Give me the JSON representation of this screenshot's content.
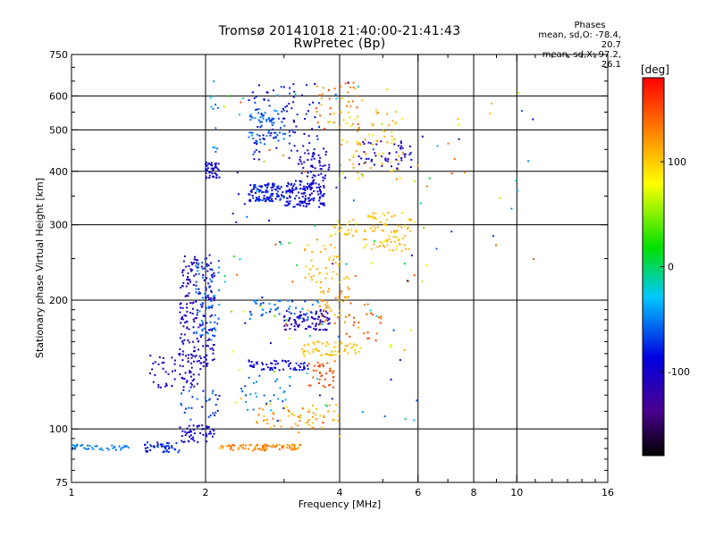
{
  "chart_data": {
    "type": "scatter",
    "title": "Tromsø 20141018 21:40:00-21:41:43",
    "subtitle": "RwPretec (Bp)",
    "xlabel": "Frequency [MHz]",
    "ylabel": "Stationary phase Virtual Height [km]",
    "xscale": "log",
    "yscale": "log",
    "xlim": [
      1,
      16
    ],
    "ylim": [
      75,
      750
    ],
    "x_ticks": [
      1,
      2,
      4,
      6,
      8,
      10,
      16
    ],
    "x_tick_labels": [
      "1",
      "2",
      "4",
      "6",
      "8",
      "10",
      "16"
    ],
    "x_gridlines": [
      2,
      4,
      6,
      8,
      10
    ],
    "y_ticks": [
      75,
      100,
      200,
      300,
      400,
      500,
      600,
      750
    ],
    "y_tick_labels": [
      "75",
      "100",
      "200",
      "300",
      "400",
      "500",
      "600",
      "750"
    ],
    "y_gridlines": [
      100,
      200,
      300,
      400,
      500,
      600
    ],
    "grid": true,
    "legend": {
      "heading": "Phases",
      "lines": [
        "mean, sd,O: -78.4, 20.7",
        "mean, sd,X:  97.2, 26.1"
      ],
      "placement": "top-right"
    },
    "colorbar": {
      "label": "[deg]",
      "range": [
        -180,
        180
      ],
      "ticks": [
        100,
        0,
        -100
      ],
      "tick_labels": [
        "100",
        "0",
        "-100"
      ],
      "colormap": "rainbow (black-purple-blue-cyan-green-yellow-red)"
    },
    "clusters": [
      {
        "f_lo": 1.0,
        "f_hi": 1.35,
        "h_lo": 89,
        "h_hi": 92,
        "n": 40,
        "ph_lo": -60,
        "ph_hi": -40
      },
      {
        "f_lo": 1.45,
        "f_hi": 1.75,
        "h_lo": 88,
        "h_hi": 93,
        "n": 45,
        "ph_lo": -95,
        "ph_hi": -60
      },
      {
        "f_lo": 1.75,
        "f_hi": 2.1,
        "h_lo": 93,
        "h_hi": 102,
        "n": 50,
        "ph_lo": -115,
        "ph_hi": -80
      },
      {
        "f_lo": 2.15,
        "f_hi": 3.3,
        "h_lo": 89,
        "h_hi": 92,
        "n": 85,
        "ph_lo": 110,
        "ph_hi": 145
      },
      {
        "f_lo": 1.75,
        "f_hi": 2.1,
        "h_lo": 140,
        "h_hi": 255,
        "n": 200,
        "ph_lo": -125,
        "ph_hi": -85
      },
      {
        "f_lo": 1.9,
        "f_hi": 2.15,
        "h_lo": 160,
        "h_hi": 250,
        "n": 60,
        "ph_lo": -70,
        "ph_hi": -40
      },
      {
        "f_lo": 1.5,
        "f_hi": 1.95,
        "h_lo": 125,
        "h_hi": 150,
        "n": 60,
        "ph_lo": -120,
        "ph_hi": -85
      },
      {
        "f_lo": 1.75,
        "f_hi": 2.15,
        "h_lo": 105,
        "h_hi": 125,
        "n": 30,
        "ph_lo": -90,
        "ph_hi": -50
      },
      {
        "f_lo": 2.0,
        "f_hi": 2.15,
        "h_lo": 385,
        "h_hi": 420,
        "n": 45,
        "ph_lo": -110,
        "ph_hi": -80
      },
      {
        "f_lo": 2.05,
        "f_hi": 2.15,
        "h_lo": 420,
        "h_hi": 650,
        "n": 12,
        "ph_lo": -60,
        "ph_hi": -30
      },
      {
        "f_lo": 2.5,
        "f_hi": 3.0,
        "h_lo": 340,
        "h_hi": 375,
        "n": 110,
        "ph_lo": -100,
        "ph_hi": -60
      },
      {
        "f_lo": 3.0,
        "f_hi": 3.7,
        "h_lo": 330,
        "h_hi": 380,
        "n": 140,
        "ph_lo": -115,
        "ph_hi": -75
      },
      {
        "f_lo": 2.5,
        "f_hi": 3.0,
        "h_lo": 460,
        "h_hi": 560,
        "n": 60,
        "ph_lo": -70,
        "ph_hi": -40
      },
      {
        "f_lo": 2.5,
        "f_hi": 3.6,
        "h_lo": 420,
        "h_hi": 640,
        "n": 90,
        "ph_lo": -110,
        "ph_hi": -60
      },
      {
        "f_lo": 3.2,
        "f_hi": 3.8,
        "h_lo": 380,
        "h_hi": 460,
        "n": 50,
        "ph_lo": -110,
        "ph_hi": -80
      },
      {
        "f_lo": 3.5,
        "f_hi": 4.5,
        "h_lo": 500,
        "h_hi": 650,
        "n": 40,
        "ph_lo": 100,
        "ph_hi": 160
      },
      {
        "f_lo": 4.0,
        "f_hi": 5.6,
        "h_lo": 380,
        "h_hi": 560,
        "n": 70,
        "ph_lo": 80,
        "ph_hi": 130
      },
      {
        "f_lo": 4.4,
        "f_hi": 5.8,
        "h_lo": 405,
        "h_hi": 470,
        "n": 50,
        "ph_lo": -120,
        "ph_hi": -90
      },
      {
        "f_lo": 4.5,
        "f_hi": 5.8,
        "h_lo": 260,
        "h_hi": 320,
        "n": 80,
        "ph_lo": 90,
        "ph_hi": 120
      },
      {
        "f_lo": 3.8,
        "f_hi": 4.4,
        "h_lo": 280,
        "h_hi": 310,
        "n": 25,
        "ph_lo": 90,
        "ph_hi": 115
      },
      {
        "f_lo": 3.3,
        "f_hi": 4.2,
        "h_lo": 220,
        "h_hi": 270,
        "n": 40,
        "ph_lo": 95,
        "ph_hi": 120
      },
      {
        "f_lo": 3.0,
        "f_hi": 3.8,
        "h_lo": 170,
        "h_hi": 190,
        "n": 90,
        "ph_lo": -125,
        "ph_hi": -95
      },
      {
        "f_lo": 3.6,
        "f_hi": 4.2,
        "h_lo": 175,
        "h_hi": 215,
        "n": 40,
        "ph_lo": 100,
        "ph_hi": 140
      },
      {
        "f_lo": 3.3,
        "f_hi": 4.5,
        "h_lo": 148,
        "h_hi": 160,
        "n": 60,
        "ph_lo": 95,
        "ph_hi": 115
      },
      {
        "f_lo": 3.4,
        "f_hi": 3.9,
        "h_lo": 125,
        "h_hi": 145,
        "n": 35,
        "ph_lo": 140,
        "ph_hi": 160
      },
      {
        "f_lo": 2.5,
        "f_hi": 3.4,
        "h_lo": 137,
        "h_hi": 145,
        "n": 60,
        "ph_lo": -105,
        "ph_hi": -75
      },
      {
        "f_lo": 2.5,
        "f_hi": 3.6,
        "h_lo": 180,
        "h_hi": 200,
        "n": 45,
        "ph_lo": -80,
        "ph_hi": -40
      },
      {
        "f_lo": 2.6,
        "f_hi": 3.6,
        "h_lo": 100,
        "h_hi": 115,
        "n": 45,
        "ph_lo": 90,
        "ph_hi": 140
      },
      {
        "f_lo": 2.4,
        "f_hi": 3.1,
        "h_lo": 110,
        "h_hi": 135,
        "n": 30,
        "ph_lo": -70,
        "ph_hi": -30
      },
      {
        "f_lo": 3.4,
        "f_hi": 4.0,
        "h_lo": 100,
        "h_hi": 115,
        "n": 20,
        "ph_lo": 100,
        "ph_hi": 120
      },
      {
        "f_lo": 4.1,
        "f_hi": 5.0,
        "h_lo": 160,
        "h_hi": 200,
        "n": 25,
        "ph_lo": 130,
        "ph_hi": 160
      },
      {
        "f_lo": 6.0,
        "f_hi": 11.0,
        "h_lo": 220,
        "h_hi": 650,
        "n": 30,
        "ph_lo": -110,
        "ph_hi": 160
      },
      {
        "f_lo": 2.2,
        "f_hi": 6.0,
        "h_lo": 95,
        "h_hi": 650,
        "n": 120,
        "ph_lo": -130,
        "ph_hi": 160
      }
    ]
  }
}
